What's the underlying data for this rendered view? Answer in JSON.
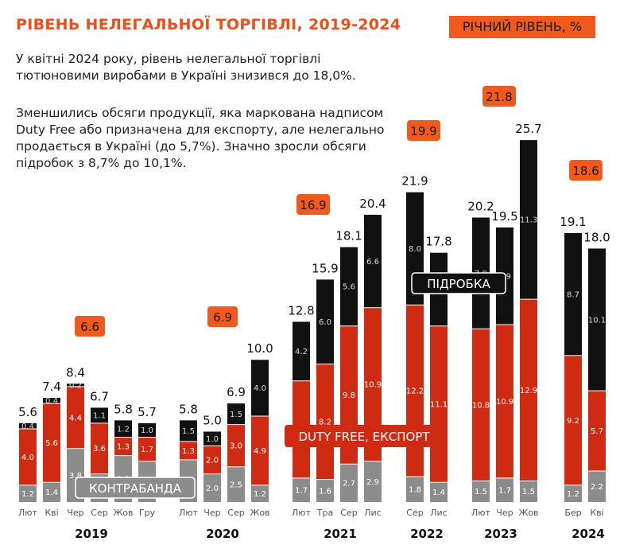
{
  "title": "РІВЕНЬ НЕЛЕГАЛЬНОЇ ТОРГІВЛІ, 2019-2024",
  "legend_badge": "РІЧНИЙ РІВЕНЬ, %",
  "description": [
    "У квітні 2024 року, рівень нелегальної торгівлі тютюновими виробами в Україні знизився до 18,0%.",
    "Зменшились обсяги продукції, яка маркована надписом Duty Free або призначена для експорту, але нелегально продається в Україні (до 5,7%). Значно зросли обсяги підробок з 8,7% до 10,1%."
  ],
  "colors": {
    "contraband": "#8c8c8c",
    "duty_free": "#cf2a12",
    "counterfeit": "#111111",
    "annual_badge": "#f25a1d",
    "title": "#e8501c"
  },
  "chart_data": {
    "type": "bar",
    "stacked": true,
    "series_names": [
      "КОНТРАБАНДА",
      "DUTY FREE, ЕКСПОРТ",
      "ПІДРОБКА"
    ],
    "groups": [
      {
        "year": "2019",
        "annual": "6.6",
        "bars": [
          {
            "label": "Лют",
            "total": "5.6",
            "values": [
              "1.2",
              "4.0",
              "0.4"
            ]
          },
          {
            "label": "Кві",
            "total": "7.4",
            "values": [
              "1.4",
              "5.6",
              "0.4"
            ]
          },
          {
            "label": "Чер",
            "total": "8.4",
            "values": [
              "3.8",
              "4.4",
              "0.2"
            ]
          },
          {
            "label": "Сер",
            "total": "6.7",
            "values": [
              "2.0",
              "3.6",
              "1.1"
            ]
          },
          {
            "label": "Жов",
            "total": "5.8",
            "values": [
              "3.3",
              "1.3",
              "1.2"
            ]
          },
          {
            "label": "Гру",
            "total": "5.7",
            "values": [
              "2.9",
              "1.7",
              "1.0"
            ]
          }
        ]
      },
      {
        "year": "2020",
        "annual": "6.9",
        "bars": [
          {
            "label": "Лют",
            "total": "5.8",
            "values": [
              "3.0",
              "1.3",
              "1.5"
            ]
          },
          {
            "label": "Чер",
            "total": "5.0",
            "values": [
              "2.0",
              "2.0",
              "1.0"
            ]
          },
          {
            "label": "Сер",
            "total": "6.9",
            "values": [
              "2.5",
              "3.0",
              "1.5"
            ]
          },
          {
            "label": "Жов",
            "total": "10.0",
            "values": [
              "1.2",
              "4.9",
              "4.0"
            ]
          }
        ]
      },
      {
        "year": "2021",
        "annual": "16.9",
        "bars": [
          {
            "label": "Лют",
            "total": "12.8",
            "values": [
              "1.7",
              "6.9",
              "4.2"
            ]
          },
          {
            "label": "Тра",
            "total": "15.9",
            "values": [
              "1.6",
              "8.2",
              "6.0"
            ]
          },
          {
            "label": "Сер",
            "total": "18.1",
            "values": [
              "2.7",
              "9.8",
              "5.6"
            ]
          },
          {
            "label": "Лис",
            "total": "20.4",
            "values": [
              "2.9",
              "10.9",
              "6.6"
            ]
          }
        ]
      },
      {
        "year": "2022",
        "annual": "19.9",
        "bars": [
          {
            "label": "Сер",
            "total": "21.9",
            "values": [
              "1.8",
              "12.2",
              "8.0"
            ]
          },
          {
            "label": "Лис",
            "total": "17.8",
            "values": [
              "1.4",
              "11.1",
              "5.2"
            ]
          }
        ]
      },
      {
        "year": "2023",
        "annual": "21.8",
        "bars": [
          {
            "label": "Лют",
            "total": "20.2",
            "values": [
              "1.5",
              "10.8",
              "7.9"
            ]
          },
          {
            "label": "Чер",
            "total": "19.5",
            "values": [
              "1.7",
              "10.9",
              "6.9"
            ]
          },
          {
            "label": "Жов",
            "total": "25.7",
            "values": [
              "1.5",
              "12.9",
              "11.3"
            ]
          }
        ]
      },
      {
        "year": "2024",
        "annual": "18.6",
        "bars": [
          {
            "label": "Бер",
            "total": "19.1",
            "values": [
              "1.2",
              "9.2",
              "8.7"
            ]
          },
          {
            "label": "Кві",
            "total": "18.0",
            "values": [
              "2.2",
              "5.7",
              "10.1"
            ]
          }
        ]
      }
    ]
  }
}
